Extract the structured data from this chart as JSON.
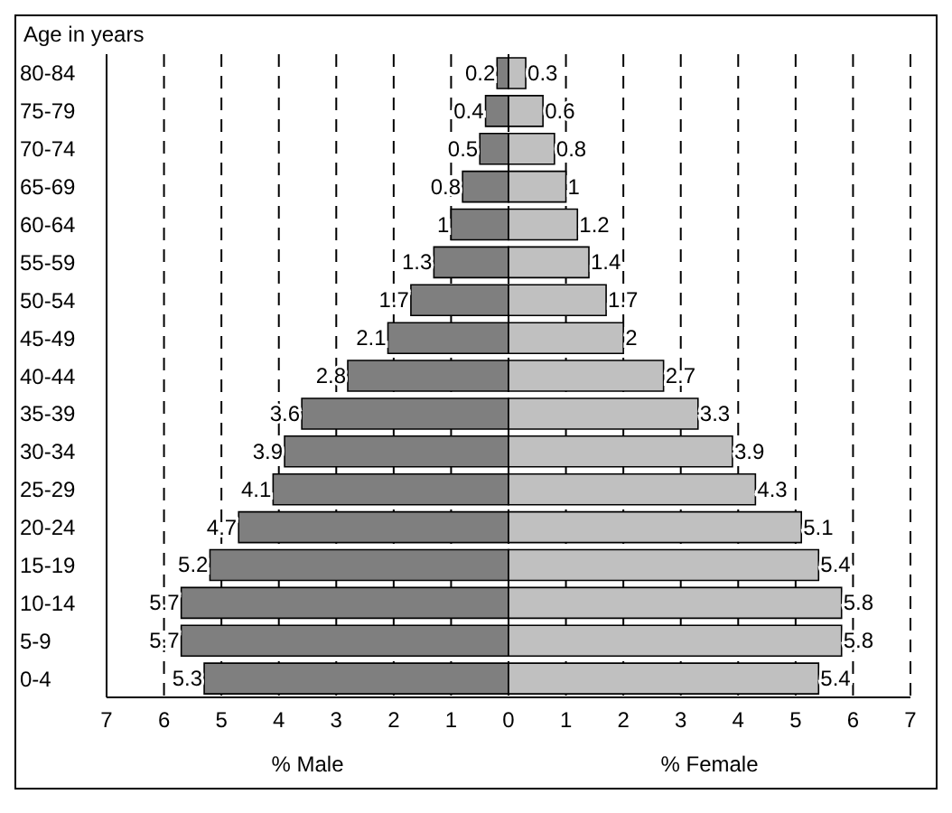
{
  "chart_data": {
    "type": "bar",
    "orientation": "horizontal",
    "ylabel": "Age in years",
    "annotations": [
      "% Male",
      "% Female"
    ],
    "categories": [
      "80-84",
      "75-79",
      "70-74",
      "65-69",
      "60-64",
      "55-59",
      "50-54",
      "45-49",
      "40-44",
      "35-39",
      "30-34",
      "25-29",
      "20-24",
      "15-19",
      "10-14",
      "5-9",
      "0-4"
    ],
    "series": [
      {
        "color": "#7f7f7f",
        "values": [
          0.2,
          0.4,
          0.5,
          0.8,
          1,
          1.3,
          1.7,
          2.1,
          2.8,
          3.6,
          3.9,
          4.1,
          4.7,
          5.2,
          5.7,
          5.7,
          5.3
        ],
        "base": [
          -0.2,
          -0.4,
          -0.5,
          -0.8,
          -1,
          -1.3,
          -1.7,
          -2.1,
          -2.8,
          -3.6,
          -3.9,
          -4.1,
          -4.7,
          -5.2,
          -5.7,
          -5.7,
          -5.3
        ]
      },
      {
        "color": "#c0c0c0",
        "values": [
          0.3,
          0.6,
          0.8,
          1,
          1.2,
          1.4,
          1.7,
          2,
          2.7,
          3.3,
          3.9,
          4.3,
          5.1,
          5.4,
          5.8,
          5.8,
          5.4
        ]
      }
    ],
    "data_labels": true,
    "xlim": [
      -7,
      7
    ],
    "xticks": [
      {
        "value": -7,
        "label": "7"
      },
      {
        "value": -6,
        "label": "6"
      },
      {
        "value": -5,
        "label": "5"
      },
      {
        "value": -4,
        "label": "4"
      },
      {
        "value": -3,
        "label": "3"
      },
      {
        "value": -2,
        "label": "2"
      },
      {
        "value": -1,
        "label": "1"
      },
      0,
      1,
      2,
      3,
      4,
      5,
      6,
      7
    ],
    "grid": "x"
  }
}
